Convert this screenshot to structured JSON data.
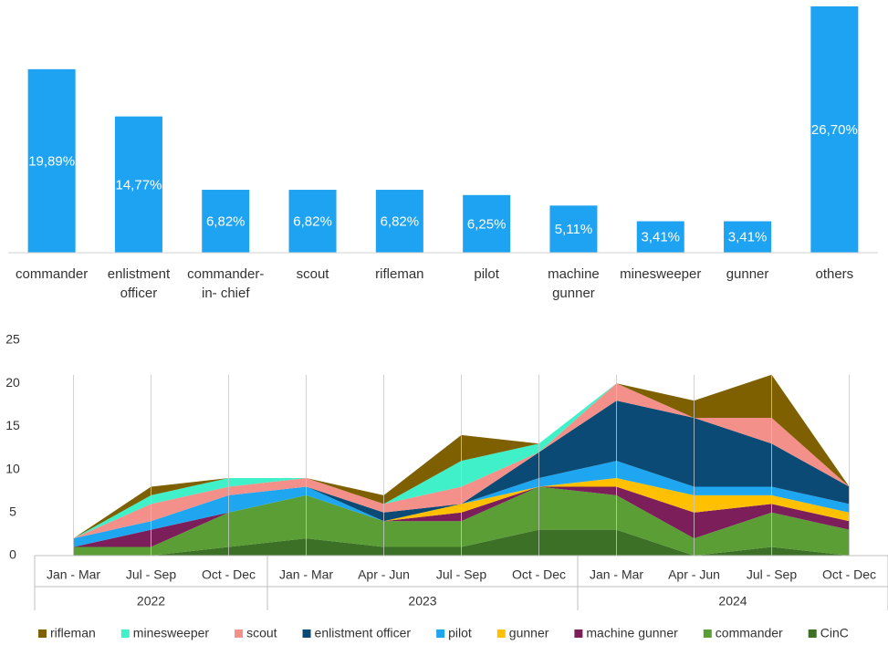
{
  "chart_data": [
    {
      "type": "bar",
      "categories": [
        "commander",
        "enlistment officer",
        "commander-in- chief",
        "scout",
        "rifleman",
        "pilot",
        "machine gunner",
        "minesweeper",
        "gunner",
        "others"
      ],
      "values": [
        19.89,
        14.77,
        6.82,
        6.82,
        6.82,
        6.25,
        5.11,
        3.41,
        3.41,
        26.7
      ],
      "value_labels": [
        "19,89%",
        "14,77%",
        "6,82%",
        "6,82%",
        "6,82%",
        "6,25%",
        "5,11%",
        "3,41%",
        "3,41%",
        "26,70%"
      ],
      "color": "#1ea3f2"
    },
    {
      "type": "stacked_area",
      "categories": [
        "Jan - Mar",
        "Jul - Sep",
        "Oct - Dec",
        "Jan - Mar",
        "Apr - Jun",
        "Jul - Sep",
        "Oct - Dec",
        "Jan - Mar",
        "Apr - Jun",
        "Jul - Sep",
        "Oct - Dec"
      ],
      "groups": [
        {
          "label": "2022",
          "count": 3
        },
        {
          "label": "2023",
          "count": 4
        },
        {
          "label": "2024",
          "count": 4
        }
      ],
      "ylim": [
        0,
        25
      ],
      "yticks": [
        0,
        5,
        10,
        15,
        20,
        25
      ],
      "series": [
        {
          "name": "CinC",
          "color": "#3c7026",
          "values": [
            0,
            0,
            1,
            2,
            1,
            1,
            3,
            3,
            0,
            1,
            0
          ]
        },
        {
          "name": "commander",
          "color": "#5a9e35",
          "values": [
            1,
            1,
            4,
            5,
            3,
            3,
            5,
            4,
            2,
            4,
            3
          ]
        },
        {
          "name": "machine gunner",
          "color": "#7b1e5a",
          "values": [
            0,
            2,
            0,
            0,
            0,
            1,
            0,
            1,
            3,
            1,
            1
          ]
        },
        {
          "name": "gunner",
          "color": "#ffc000",
          "values": [
            0,
            0,
            0,
            0,
            0,
            1,
            0,
            1,
            2,
            1,
            1
          ]
        },
        {
          "name": "pilot",
          "color": "#1ea7f0",
          "values": [
            1,
            1,
            2,
            1,
            0,
            0,
            1,
            2,
            1,
            1,
            1
          ]
        },
        {
          "name": "enlistment officer",
          "color": "#0b4a74",
          "values": [
            0,
            0,
            0,
            0,
            1,
            0,
            3,
            7,
            8,
            5,
            2
          ]
        },
        {
          "name": "scout",
          "color": "#f4908a",
          "values": [
            0,
            2,
            1,
            1,
            1,
            2,
            0,
            2,
            0,
            3,
            0
          ]
        },
        {
          "name": "minesweeper",
          "color": "#3ff0c8",
          "values": [
            0,
            1,
            1,
            0,
            0,
            3,
            1,
            0,
            0,
            0,
            0
          ]
        },
        {
          "name": "rifleman",
          "color": "#7f6000",
          "values": [
            0,
            1,
            0,
            0,
            1,
            3,
            0,
            0,
            2,
            5,
            0
          ]
        }
      ]
    }
  ]
}
